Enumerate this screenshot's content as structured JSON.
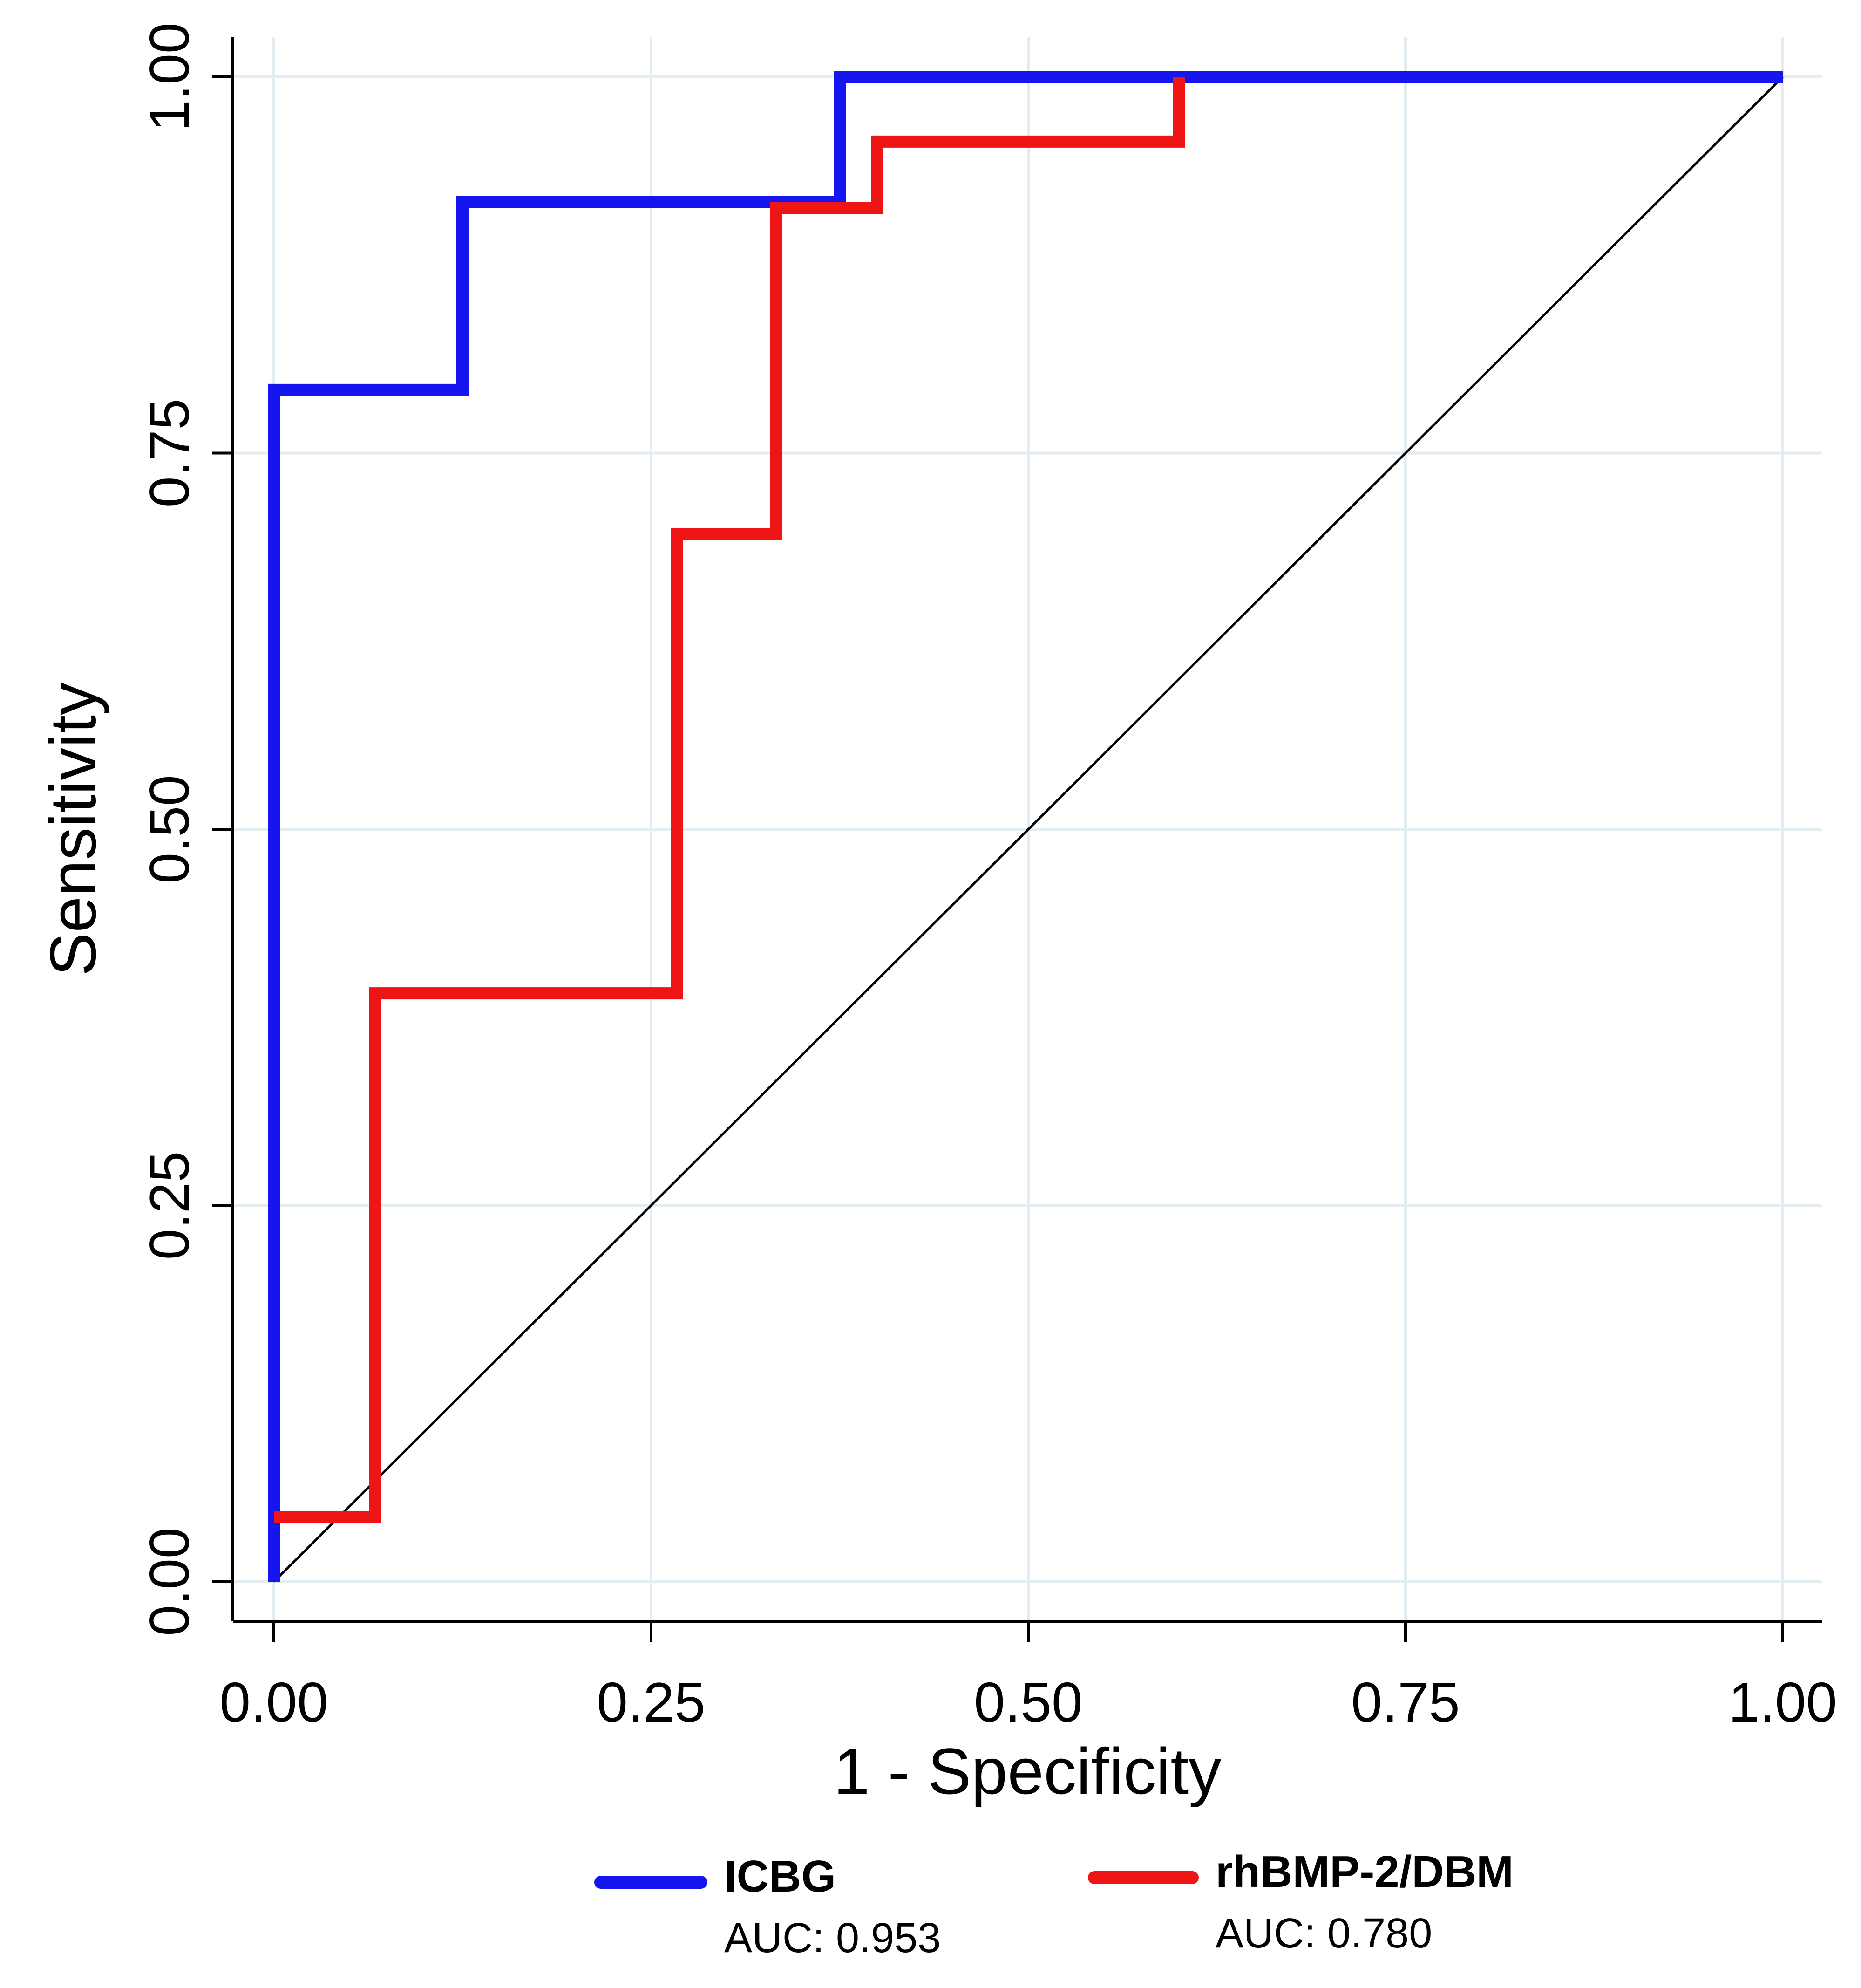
{
  "chart_data": {
    "type": "line",
    "title": "",
    "xlabel": "1 - Specificity",
    "ylabel": "Sensitivity",
    "xlim": [
      0,
      1
    ],
    "ylim": [
      0,
      1
    ],
    "x_ticks": [
      "0.00",
      "0.25",
      "0.50",
      "0.75",
      "1.00"
    ],
    "y_ticks": [
      "0.00",
      "0.25",
      "0.50",
      "0.75",
      "1.00"
    ],
    "grid": true,
    "legend_position": "bottom",
    "series": [
      {
        "name": "ICBG",
        "auc_label": "AUC: 0.953",
        "color": "#1515f0",
        "points": [
          [
            0.0,
            0.0
          ],
          [
            0.0,
            0.792
          ],
          [
            0.125,
            0.792
          ],
          [
            0.125,
            0.917
          ],
          [
            0.375,
            0.917
          ],
          [
            0.375,
            1.0
          ],
          [
            1.0,
            1.0
          ]
        ]
      },
      {
        "name": "rhBMP-2/DBM",
        "auc_label": "AUC: 0.780",
        "color": "#f01515",
        "points": [
          [
            0.0,
            0.043
          ],
          [
            0.067,
            0.043
          ],
          [
            0.067,
            0.391
          ],
          [
            0.267,
            0.391
          ],
          [
            0.267,
            0.696
          ],
          [
            0.333,
            0.696
          ],
          [
            0.333,
            0.913
          ],
          [
            0.4,
            0.913
          ],
          [
            0.4,
            0.957
          ],
          [
            0.6,
            0.957
          ],
          [
            0.6,
            1.0
          ]
        ]
      }
    ],
    "reference_line": {
      "color": "#000000",
      "points": [
        [
          0,
          0
        ],
        [
          1,
          1
        ]
      ]
    },
    "grid_color": "#e4edf1"
  }
}
